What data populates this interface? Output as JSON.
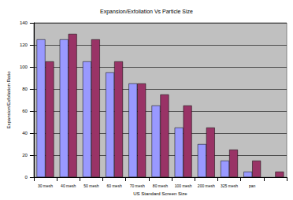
{
  "chart_data": {
    "type": "bar",
    "title": "Expansion/Exfoliation Vs Particle Size",
    "x_label": "US Standard Screen Size",
    "y_label": "Expansion/Exfoliation Ratio",
    "categories": [
      "30 mesh",
      "40 mesh",
      "50 mesh",
      "60 mesh",
      "70 mesh",
      "80 mesh",
      "100 mesh",
      "200 mesh",
      "325 mesh",
      "pan",
      null
    ],
    "series": [
      {
        "color": "#9999ff",
        "values": [
          125,
          125,
          105,
          95,
          85,
          65,
          45,
          30,
          15,
          5,
          null
        ]
      },
      {
        "color": "#993366",
        "values": [
          105,
          130,
          125,
          105,
          85,
          75,
          65,
          45,
          25,
          15,
          5
        ]
      }
    ],
    "ylim": [
      0,
      140
    ],
    "yticks": [
      0,
      20,
      40,
      60,
      80,
      100,
      120,
      140
    ],
    "grid": true
  }
}
